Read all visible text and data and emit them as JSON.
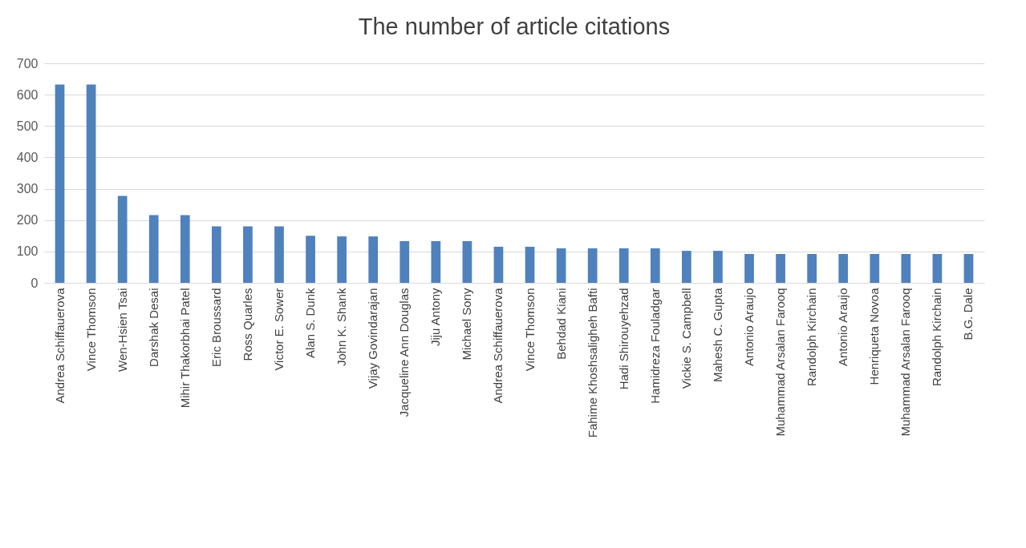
{
  "chart_data": {
    "type": "bar",
    "title": "The number of article citations",
    "categories": [
      "Andrea Schiffauerova",
      "Vince Thomson",
      "Wen-Hsien Tsai",
      "Darshak Desai",
      "Mihir Thakorbhai Patel",
      "Eric Broussard",
      "Ross Quarles",
      "Victor E. Sower",
      "Alan S. Dunk",
      "John K. Shank",
      "Vijay Govindarajan",
      "Jacqueline Ann Douglas",
      "Jiju Antony",
      "Michael Sony",
      "Andrea Schiffauerova",
      "Vince Thomson",
      "Behdad Kiani",
      "Fahime Khoshsaligheh Bafti",
      "Hadi Shirouyehzad",
      "Hamidreza Fouladgar",
      "Vickie S. Campbell",
      "Mahesh C. Gupta",
      "Antonio Araujo",
      "Muhammad Arsalan Farooq",
      "Randolph Kirchain",
      "Antonio Araujo",
      "Henriqueta Novoa",
      "Muhammad Arsalan Farooq",
      "Randolph Kirchain",
      "B.G. Dale"
    ],
    "values": [
      632,
      632,
      277,
      216,
      216,
      180,
      180,
      180,
      150,
      148,
      148,
      133,
      133,
      133,
      115,
      115,
      110,
      110,
      110,
      110,
      102,
      102,
      92,
      92,
      92,
      92,
      92,
      92,
      92,
      92
    ],
    "color": "#4f81bd",
    "ylim": [
      0,
      700
    ],
    "yticks": [
      0,
      100,
      200,
      300,
      400,
      500,
      600,
      700
    ],
    "grid": "y"
  }
}
